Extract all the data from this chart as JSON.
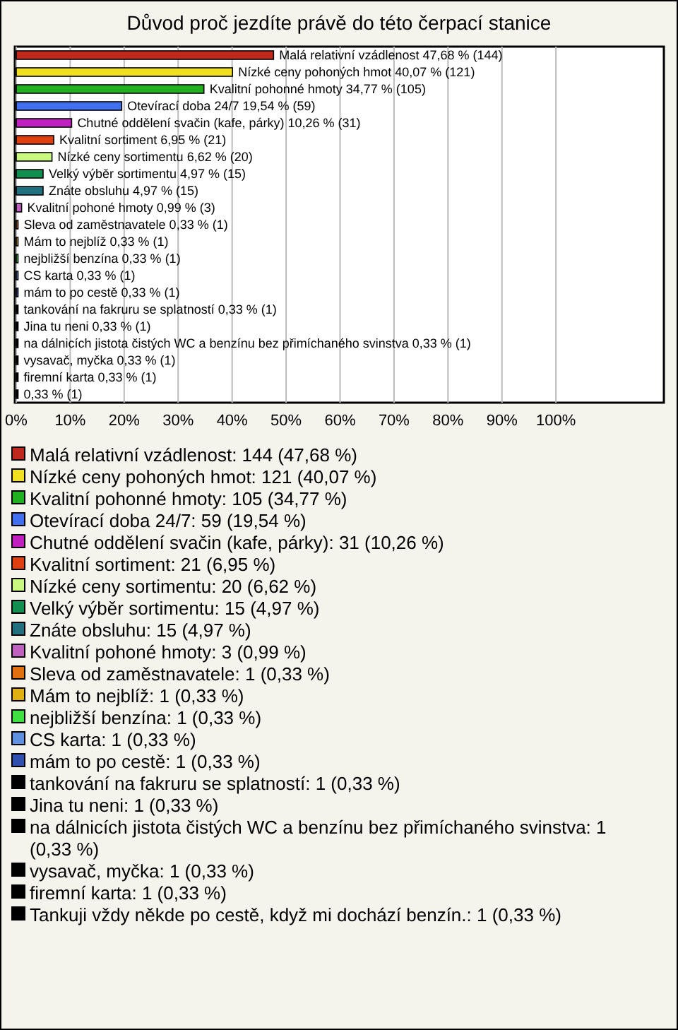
{
  "chart_data": {
    "type": "bar",
    "orientation": "horizontal",
    "title": "Důvod proč jezdíte právě do této čerpací stanice",
    "categories": [
      "Malá relativní vzádlenost",
      "Nízké ceny pohoných hmot",
      "Kvalitní pohonné hmoty",
      "Otevírací doba 24/7",
      "Chutné oddělení svačin (kafe, párky)",
      "Kvalitní sortiment",
      "Nízké ceny sortimentu",
      "Velký výběr sortimentu",
      "Znáte obsluhu",
      "Kvalitní pohoné hmoty",
      "Sleva od zaměstnavatele",
      "Mám to nejblíž",
      "nejbližší benzína",
      "CS karta",
      "mám to po cestě",
      "tankování na fakruru se splatností",
      "Jina tu neni",
      "na dálnicích jistota čistých WC a benzínu bez přimíchaného svinstva",
      "vysavač, myčka",
      "firemní karta",
      null
    ],
    "values": [
      47.68,
      40.07,
      34.77,
      19.54,
      10.26,
      6.95,
      6.62,
      4.97,
      4.97,
      0.99,
      0.33,
      0.33,
      0.33,
      0.33,
      0.33,
      0.33,
      0.33,
      0.33,
      0.33,
      0.33,
      0.33
    ],
    "value_labels": [
      "47,68 % (144)",
      "40,07 % (121)",
      "34,77 % (105)",
      "19,54 % (59)",
      "10,26 % (31)",
      "6,95 % (21)",
      "6,62 % (20)",
      "4,97 % (15)",
      "4,97 % (15)",
      "0,99 % (3)",
      "0,33 % (1)",
      "0,33 % (1)",
      "0,33 % (1)",
      "0,33 % (1)",
      "0,33 % (1)",
      "0,33 % (1)",
      "0,33 % (1)",
      "0,33 % (1)",
      "0,33 % (1)",
      "0,33 % (1)",
      "0,33 % (1)"
    ],
    "colors": [
      "#c0281c",
      "#f0e020",
      "#20b020",
      "#4070f0",
      "#c020c0",
      "#e04010",
      "#c8f880",
      "#109050",
      "#207080",
      "#c060c0",
      "#e07010",
      "#e0b010",
      "#40e040",
      "#6090e0",
      "#3050b0",
      "#000000",
      "#000000",
      "#000000",
      "#000000",
      "#000000",
      "#000000"
    ],
    "xlim": [
      0,
      120
    ],
    "xticks": [
      {
        "value": 0,
        "label": "0%"
      },
      {
        "value": 10,
        "label": "10%"
      },
      {
        "value": 20,
        "label": "20%"
      },
      {
        "value": 30,
        "label": "30%"
      },
      {
        "value": 40,
        "label": "40%"
      },
      {
        "value": 50,
        "label": "50%"
      },
      {
        "value": 60,
        "label": "60%"
      },
      {
        "value": 70,
        "label": "70%"
      },
      {
        "value": 80,
        "label": "80%"
      },
      {
        "value": 90,
        "label": "90%"
      },
      {
        "value": 100,
        "label": "100%"
      }
    ],
    "grid": "x",
    "annotations": [
      "Malá relativní vzádlenost: 144 (47,68 %)",
      "Nízké ceny pohoných hmot: 121 (40,07 %)",
      "Kvalitní pohonné hmoty: 105 (34,77 %)",
      "Otevírací doba 24/7: 59 (19,54 %)",
      "Chutné oddělení svačin (kafe, párky): 31 (10,26 %)",
      "Kvalitní sortiment: 21 (6,95 %)",
      "Nízké ceny sortimentu: 20 (6,62 %)",
      "Velký výběr sortimentu: 15 (4,97 %)",
      "Znáte obsluhu: 15 (4,97 %)",
      "Kvalitní pohoné hmoty: 3 (0,99 %)",
      "Sleva od zaměstnavatele: 1 (0,33 %)",
      "Mám to nejblíž: 1 (0,33 %)",
      "nejbližší benzína: 1 (0,33 %)",
      "CS karta: 1 (0,33 %)",
      "mám to po cestě: 1 (0,33 %)",
      "tankování na fakruru se splatností: 1 (0,33 %)",
      "Jina tu neni: 1 (0,33 %)",
      "na dálnicích jistota čistých WC a benzínu bez přimíchaného svinstva: 1 (0,33 %)",
      "vysavač, myčka: 1 (0,33 %)",
      "firemní karta: 1 (0,33 %)",
      "Tankuji vždy někde po cestě, když mi dochází benzín.: 1 (0,33 %)"
    ]
  }
}
